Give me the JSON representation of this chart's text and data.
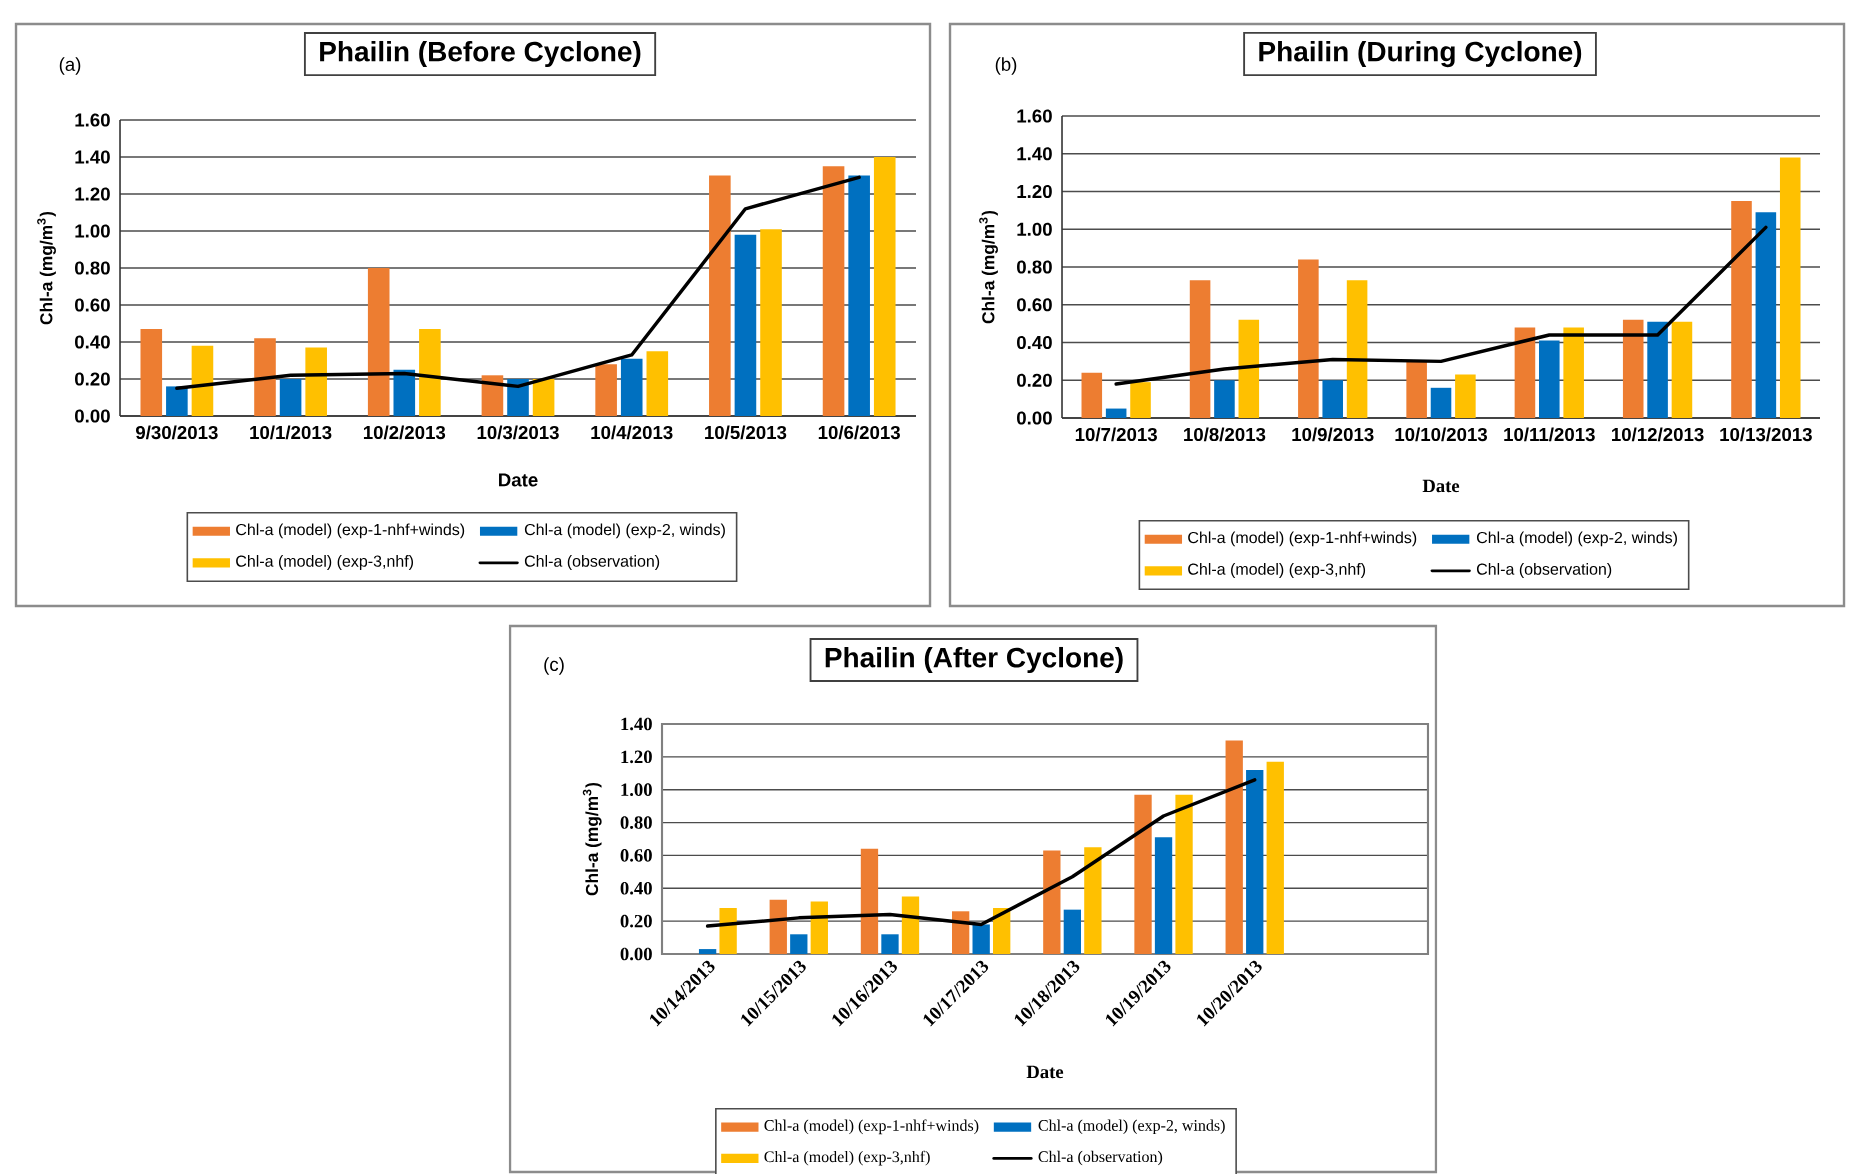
{
  "chart_data": [
    {
      "type": "bar",
      "title": "Phailin (Before Cyclone)",
      "xlabel": "Date",
      "ylabel": "Chl-a (mg/m$^{3}$)",
      "annotations": [
        "(a)"
      ],
      "categories": [
        "9/30/2013",
        "10/1/2013",
        "10/2/2013",
        "10/3/2013",
        "10/4/2013",
        "10/5/2013",
        "10/6/2013"
      ],
      "series": [
        {
          "name": "Chl-a (model) (exp-1-nhf+winds)",
          "color": "#ed7d31",
          "values": [
            0.47,
            0.42,
            0.8,
            0.22,
            0.28,
            1.3,
            1.35
          ]
        },
        {
          "name": "Chl-a (model) (exp-2, winds)",
          "color": "#0070c0",
          "values": [
            0.16,
            0.2,
            0.25,
            0.2,
            0.31,
            0.98,
            1.3
          ]
        },
        {
          "name": "Chl-a (model) (exp-3,nhf)",
          "color": "#ffc000",
          "values": [
            0.38,
            0.37,
            0.47,
            0.2,
            0.35,
            1.01,
            1.4
          ]
        },
        {
          "name": "Chl-a (observation)",
          "type": "line",
          "color": "#000000",
          "values": [
            0.15,
            0.22,
            0.23,
            0.16,
            0.33,
            1.12,
            1.29
          ]
        }
      ],
      "ylim": [
        0,
        1.6
      ],
      "yticks": [
        {
          "value": 0,
          "label": "0.00"
        },
        {
          "value": 0.2,
          "label": "0.20"
        },
        {
          "value": 0.4,
          "label": "0.40"
        },
        {
          "value": 0.6,
          "label": "0.60"
        },
        {
          "value": 0.8,
          "label": "0.80"
        },
        {
          "value": 1.0,
          "label": "1.00"
        },
        {
          "value": 1.2,
          "label": "1.20"
        },
        {
          "value": 1.4,
          "label": "1.40"
        },
        {
          "value": 1.6,
          "label": "1.60"
        }
      ],
      "grid": "y",
      "legend": "bottom"
    },
    {
      "type": "bar",
      "title": "Phailin (During Cyclone)",
      "xlabel": "Date",
      "ylabel": "Chl-a (mg/m$^{3}$)",
      "annotations": [
        "(b)"
      ],
      "categories": [
        "10/7/2013",
        "10/8/2013",
        "10/9/2013",
        "10/10/2013",
        "10/11/2013",
        "10/12/2013",
        "10/13/2013"
      ],
      "series": [
        {
          "name": "Chl-a (model) (exp-1-nhf+winds)",
          "color": "#ed7d31",
          "values": [
            0.24,
            0.73,
            0.84,
            0.3,
            0.48,
            0.52,
            1.15
          ]
        },
        {
          "name": "Chl-a (model) (exp-2, winds)",
          "color": "#0070c0",
          "values": [
            0.05,
            0.2,
            0.2,
            0.16,
            0.41,
            0.51,
            1.09
          ]
        },
        {
          "name": "Chl-a (model) (exp-3,nhf)",
          "color": "#ffc000",
          "values": [
            0.19,
            0.52,
            0.73,
            0.23,
            0.48,
            0.51,
            1.38
          ]
        },
        {
          "name": "Chl-a (observation)",
          "type": "line",
          "color": "#000000",
          "values": [
            0.18,
            0.26,
            0.31,
            0.3,
            0.44,
            0.44,
            1.01
          ]
        }
      ],
      "ylim": [
        0,
        1.6
      ],
      "yticks": [
        {
          "value": 0,
          "label": "0.00"
        },
        {
          "value": 0.2,
          "label": "0.20"
        },
        {
          "value": 0.4,
          "label": "0.40"
        },
        {
          "value": 0.6,
          "label": "0.60"
        },
        {
          "value": 0.8,
          "label": "0.80"
        },
        {
          "value": 1.0,
          "label": "1.00"
        },
        {
          "value": 1.2,
          "label": "1.20"
        },
        {
          "value": 1.4,
          "label": "1.40"
        },
        {
          "value": 1.6,
          "label": "1.60"
        }
      ],
      "grid": "y",
      "legend": "bottom"
    },
    {
      "type": "bar",
      "title": "Phailin (After Cyclone)",
      "xlabel": "Date",
      "ylabel": "Chl-a (mg/m$^{3}$)",
      "annotations": [
        "(c)"
      ],
      "categories": [
        "10/14/2013",
        "10/15/2013",
        "10/16/2013",
        "10/17/2013",
        "10/18/2013",
        "10/19/2013",
        "10/20/2013"
      ],
      "series": [
        {
          "name": "Chl-a (model) (exp-1-nhf+winds)",
          "color": "#ed7d31",
          "values": [
            null,
            0.33,
            0.64,
            0.26,
            0.63,
            0.97,
            1.3
          ]
        },
        {
          "name": "Chl-a (model) (exp-2, winds)",
          "color": "#0070c0",
          "values": [
            0.03,
            0.12,
            0.12,
            0.18,
            0.27,
            0.71,
            1.12
          ]
        },
        {
          "name": "Chl-a (model) (exp-3,nhf)",
          "color": "#ffc000",
          "values": [
            0.28,
            0.32,
            0.35,
            0.28,
            0.65,
            0.97,
            1.17
          ]
        },
        {
          "name": "Chl-a (observation)",
          "type": "line",
          "color": "#000000",
          "values": [
            0.17,
            0.22,
            0.24,
            0.18,
            0.47,
            0.84,
            1.06
          ]
        }
      ],
      "ylim": [
        0,
        1.4
      ],
      "yticks": [
        {
          "value": 0,
          "label": "0.00"
        },
        {
          "value": 0.2,
          "label": "0.20"
        },
        {
          "value": 0.4,
          "label": "0.40"
        },
        {
          "value": 0.6,
          "label": "0.60"
        },
        {
          "value": 0.8,
          "label": "0.80"
        },
        {
          "value": 1.0,
          "label": "1.00"
        },
        {
          "value": 1.2,
          "label": "1.20"
        },
        {
          "value": 1.4,
          "label": "1.40"
        }
      ],
      "grid": "y",
      "legend": "bottom"
    }
  ]
}
